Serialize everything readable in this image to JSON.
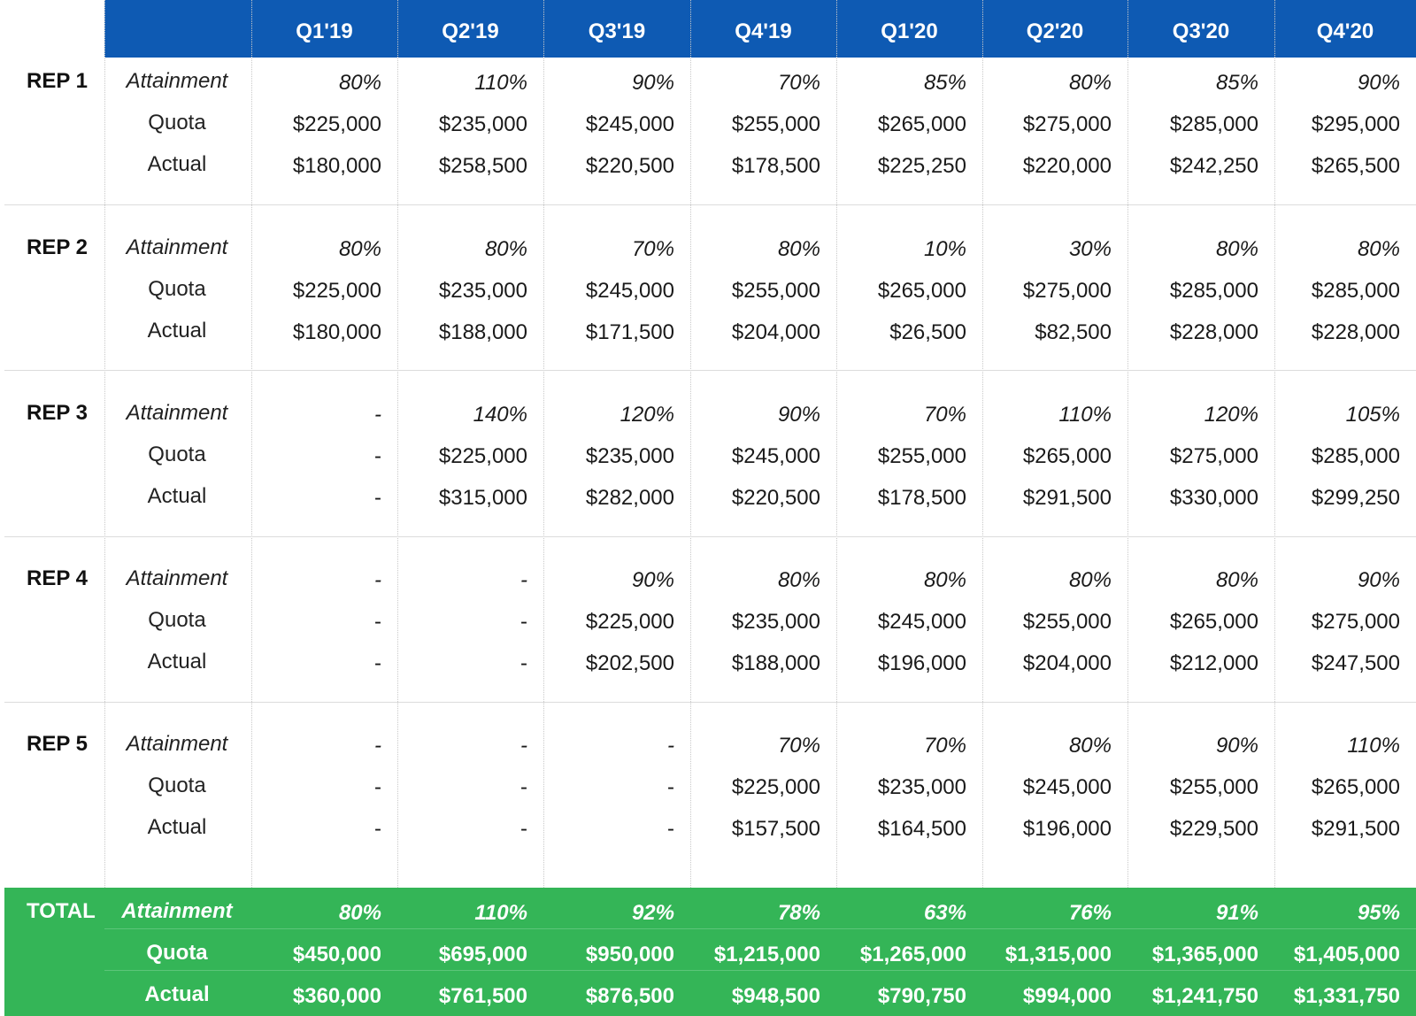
{
  "header": {
    "quarters": [
      "Q1'19",
      "Q2'19",
      "Q3'19",
      "Q4'19",
      "Q1'20",
      "Q2'20",
      "Q3'20",
      "Q4'20"
    ]
  },
  "row_labels": {
    "attainment": "Attainment",
    "quota": "Quota",
    "actual": "Actual"
  },
  "reps": [
    {
      "name": "REP 1",
      "attainment": [
        "80%",
        "110%",
        "90%",
        "70%",
        "85%",
        "80%",
        "85%",
        "90%"
      ],
      "quota": [
        "$225,000",
        "$235,000",
        "$245,000",
        "$255,000",
        "$265,000",
        "$275,000",
        "$285,000",
        "$295,000"
      ],
      "actual": [
        "$180,000",
        "$258,500",
        "$220,500",
        "$178,500",
        "$225,250",
        "$220,000",
        "$242,250",
        "$265,500"
      ]
    },
    {
      "name": "REP 2",
      "attainment": [
        "80%",
        "80%",
        "70%",
        "80%",
        "10%",
        "30%",
        "80%",
        "80%"
      ],
      "quota": [
        "$225,000",
        "$235,000",
        "$245,000",
        "$255,000",
        "$265,000",
        "$275,000",
        "$285,000",
        "$285,000"
      ],
      "actual": [
        "$180,000",
        "$188,000",
        "$171,500",
        "$204,000",
        "$26,500",
        "$82,500",
        "$228,000",
        "$228,000"
      ]
    },
    {
      "name": "REP 3",
      "attainment": [
        "-",
        "140%",
        "120%",
        "90%",
        "70%",
        "110%",
        "120%",
        "105%"
      ],
      "quota": [
        "-",
        "$225,000",
        "$235,000",
        "$245,000",
        "$255,000",
        "$265,000",
        "$275,000",
        "$285,000"
      ],
      "actual": [
        "-",
        "$315,000",
        "$282,000",
        "$220,500",
        "$178,500",
        "$291,500",
        "$330,000",
        "$299,250"
      ]
    },
    {
      "name": "REP 4",
      "attainment": [
        "-",
        "-",
        "90%",
        "80%",
        "80%",
        "80%",
        "80%",
        "90%"
      ],
      "quota": [
        "-",
        "-",
        "$225,000",
        "$235,000",
        "$245,000",
        "$255,000",
        "$265,000",
        "$275,000"
      ],
      "actual": [
        "-",
        "-",
        "$202,500",
        "$188,000",
        "$196,000",
        "$204,000",
        "$212,000",
        "$247,500"
      ]
    },
    {
      "name": "REP 5",
      "attainment": [
        "-",
        "-",
        "-",
        "70%",
        "70%",
        "80%",
        "90%",
        "110%"
      ],
      "quota": [
        "-",
        "-",
        "-",
        "$225,000",
        "$235,000",
        "$245,000",
        "$255,000",
        "$265,000"
      ],
      "actual": [
        "-",
        "-",
        "-",
        "$157,500",
        "$164,500",
        "$196,000",
        "$229,500",
        "$291,500"
      ]
    }
  ],
  "total": {
    "name": "TOTAL",
    "attainment": [
      "80%",
      "110%",
      "92%",
      "78%",
      "63%",
      "76%",
      "91%",
      "95%"
    ],
    "quota": [
      "$450,000",
      "$695,000",
      "$950,000",
      "$1,215,000",
      "$1,265,000",
      "$1,315,000",
      "$1,365,000",
      "$1,405,000"
    ],
    "actual": [
      "$360,000",
      "$761,500",
      "$876,500",
      "$948,500",
      "$790,750",
      "$994,000",
      "$1,241,750",
      "$1,331,750"
    ]
  },
  "colors": {
    "header_bg": "#0e5ab3",
    "total_bg": "#34b557"
  }
}
